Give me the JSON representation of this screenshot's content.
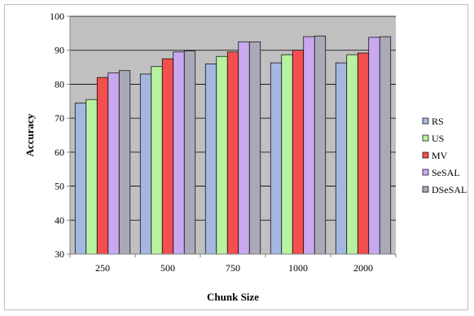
{
  "chart_data": {
    "type": "bar",
    "title": "",
    "xlabel": "Chunk Size",
    "ylabel": "Accuracy",
    "categories": [
      "250",
      "500",
      "750",
      "1000",
      "2000"
    ],
    "ylim": [
      30,
      100
    ],
    "yticks": [
      30,
      40,
      50,
      60,
      70,
      80,
      90,
      100
    ],
    "grid": true,
    "legend_position": "right",
    "series": [
      {
        "name": "RS",
        "color": "#a4b7e0",
        "values": [
          74.5,
          83,
          86,
          86.3,
          86.3
        ]
      },
      {
        "name": "US",
        "color": "#b6f2a0",
        "values": [
          75.5,
          85.2,
          88.2,
          88.7,
          88.7
        ]
      },
      {
        "name": "MV",
        "color": "#f24f4f",
        "values": [
          82,
          87.5,
          89.5,
          90,
          89.2
        ]
      },
      {
        "name": "SeSAL",
        "color": "#c8a9ef",
        "values": [
          83.3,
          89.5,
          92.5,
          94,
          93.8
        ]
      },
      {
        "name": "DSeSAL",
        "color": "#a9a9b9",
        "values": [
          84,
          89.8,
          92.5,
          94.2,
          94
        ]
      }
    ]
  }
}
